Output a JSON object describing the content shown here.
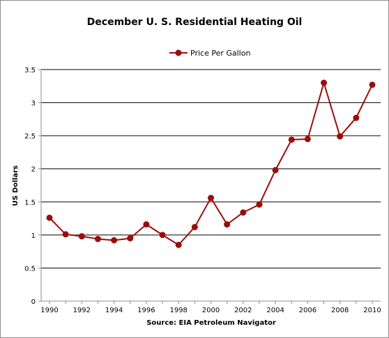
{
  "chart_data": {
    "type": "line",
    "title": "December U. S. Residential Heating Oil",
    "xlabel": "Source: EIA Petroleum Navigator",
    "ylabel": "US Dollars",
    "ylim": [
      0,
      3.5
    ],
    "xlim": [
      1990,
      2010
    ],
    "yticks": [
      "0",
      "0.5",
      "1",
      "1.5",
      "2",
      "2.5",
      "3",
      "3.5"
    ],
    "xticks": [
      "1990",
      "1992",
      "1994",
      "1996",
      "1998",
      "2000",
      "2002",
      "2004",
      "2006",
      "2008",
      "2010"
    ],
    "grid": "horizontal",
    "legend_position": "top",
    "series": [
      {
        "name": "Price Per Gallon",
        "color": "#9b0d0d",
        "x": [
          1990,
          1991,
          1992,
          1993,
          1994,
          1995,
          1996,
          1997,
          1998,
          1999,
          2000,
          2001,
          2002,
          2003,
          2004,
          2005,
          2006,
          2007,
          2008,
          2009,
          2010
        ],
        "values": [
          1.26,
          1.01,
          0.98,
          0.94,
          0.92,
          0.95,
          1.16,
          1.0,
          0.85,
          1.12,
          1.56,
          1.16,
          1.34,
          1.46,
          1.98,
          2.44,
          2.45,
          3.3,
          2.49,
          2.77,
          3.27
        ]
      }
    ]
  }
}
